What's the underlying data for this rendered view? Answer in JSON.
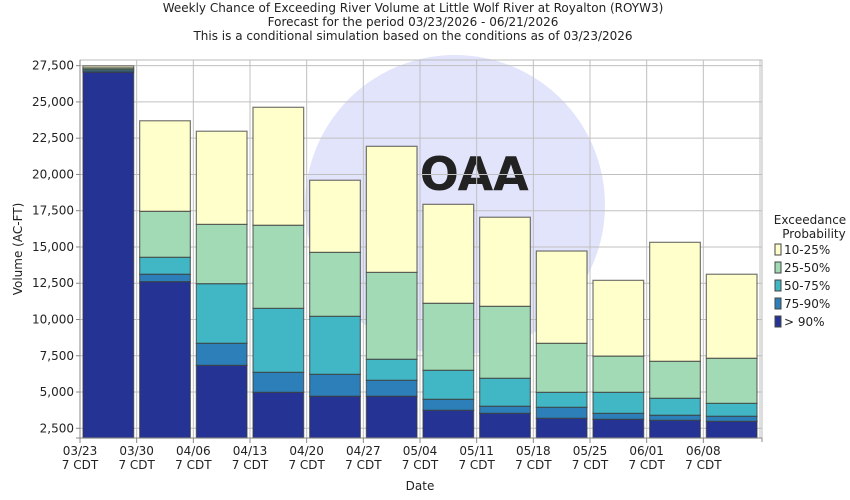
{
  "chart_data": {
    "type": "bar",
    "stacked": true,
    "title": [
      "Weekly Chance of Exceeding River Volume at Little Wolf River at Royalton (ROYW3)",
      "Forecast for the period 03/23/2026 - 06/21/2026",
      "This is a conditional simulation based on the conditions as of 03/23/2026"
    ],
    "xlabel": "Date",
    "ylabel": "Volume (AC-FT)",
    "categories": [
      "03/23",
      "03/30",
      "04/06",
      "04/13",
      "04/20",
      "04/27",
      "05/04",
      "05/11",
      "05/18",
      "05/25",
      "06/01",
      "06/08"
    ],
    "category_sublabel": "7 CDT",
    "ylim": [
      1830,
      27890
    ],
    "yticks": [
      2500,
      5000,
      7500,
      10000,
      12500,
      15000,
      17500,
      20000,
      22500,
      25000,
      27500
    ],
    "ytick_labels": [
      "2,500",
      "5,000",
      "7,500",
      "10,000",
      "12,500",
      "15,000",
      "17,500",
      "20,000",
      "22,500",
      "25,000",
      "27,500"
    ],
    "grid": true,
    "legend": {
      "title": [
        "Exceedance",
        "Probability"
      ],
      "placement": "right"
    },
    "series": [
      {
        "name": "> 90%",
        "color": "#253494",
        "top_values": [
          27050,
          12610,
          6840,
          4980,
          4710,
          4710,
          3740,
          3530,
          3190,
          3120,
          3050,
          2980
        ]
      },
      {
        "name": "75-90%",
        "color": "#2c7fb8",
        "top_values": [
          27150,
          13120,
          8360,
          6360,
          6220,
          5810,
          4500,
          4020,
          3950,
          3530,
          3400,
          3330
        ]
      },
      {
        "name": "50-75%",
        "color": "#41b6c4",
        "top_values": [
          27250,
          14290,
          12470,
          10770,
          10220,
          7260,
          6500,
          5950,
          4980,
          4980,
          4570,
          4220
        ]
      },
      {
        "name": "25-50%",
        "color": "#a1dab4",
        "top_values": [
          27350,
          17460,
          16560,
          16500,
          14630,
          13250,
          11120,
          10910,
          8360,
          7480,
          7120,
          7330
        ]
      },
      {
        "name": "10-25%",
        "color": "#ffffcc",
        "top_values": [
          27480,
          23700,
          22980,
          24630,
          19600,
          21940,
          17940,
          17050,
          14720,
          12700,
          15320,
          13120
        ]
      }
    ],
    "legend_order": [
      4,
      3,
      2,
      1,
      0
    ],
    "watermark": "NOAA"
  }
}
